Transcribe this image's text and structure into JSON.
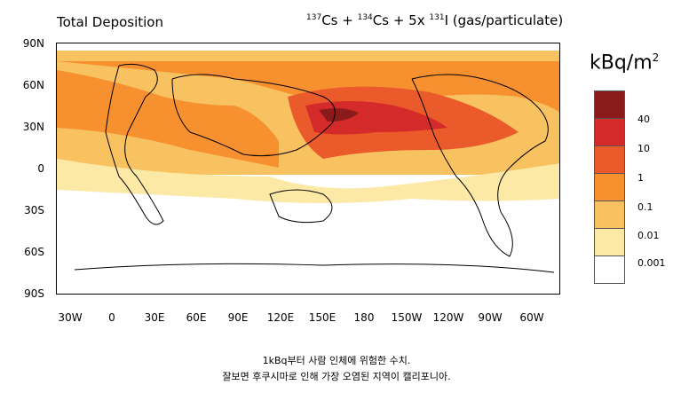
{
  "title_left": "Total Deposition",
  "title_right": {
    "parts": [
      {
        "sup": "137",
        "text": "Cs + "
      },
      {
        "sup": "134",
        "text": "Cs + 5x "
      },
      {
        "sup": "131",
        "text": "I (gas/particulate)"
      }
    ]
  },
  "lat_labels": [
    "90N",
    "60N",
    "30N",
    "0",
    "30S",
    "60S",
    "90S"
  ],
  "lon_labels": [
    "30W",
    "0",
    "30E",
    "60E",
    "90E",
    "120E",
    "150E",
    "180",
    "150W",
    "120W",
    "90W",
    "60W"
  ],
  "legend": {
    "unit_base": "kBq/m",
    "unit_sup": "2",
    "levels": [
      "40",
      "10",
      "1",
      "0.1",
      "0.01",
      "0.001"
    ],
    "colors": [
      "#8b1a1a",
      "#d42a2a",
      "#ea5a2a",
      "#f7912f",
      "#f9c261",
      "#fde9a6",
      "#ffffff"
    ]
  },
  "caption": {
    "line1": "1kBq부터 사람 인체에 위험한 수치.",
    "line2": "잘보면 후쿠시마로 인해 가장 오염된 지역이 캘리포니아."
  }
}
